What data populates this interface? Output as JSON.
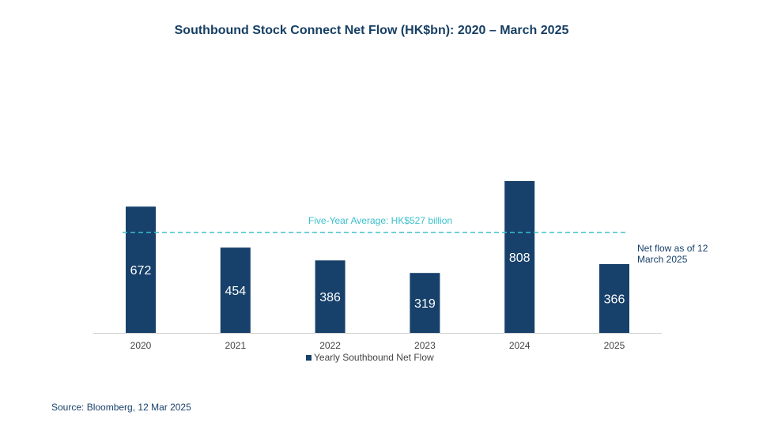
{
  "chart_data": {
    "type": "bar",
    "title": "Southbound Stock Connect Net Flow (HK$bn): 2020 – March 2025",
    "categories": [
      "2020",
      "2021",
      "2022",
      "2023",
      "2024",
      "2025"
    ],
    "series": [
      {
        "name": "Yearly Southbound Net Flow",
        "values": [
          672,
          454,
          386,
          319,
          808,
          366
        ],
        "color": "#17406a"
      }
    ],
    "data_labels": [
      "672",
      "454",
      "386",
      "319",
      "808",
      "366"
    ],
    "reference_line": {
      "value": 527,
      "label": "Five-Year Average: HK$527 billion",
      "color": "#3cc0cc",
      "style": "dashed"
    },
    "annotation": "Net flow as of 12 March 2025",
    "ylim": [
      0,
      808
    ],
    "xlabel": "",
    "ylabel": "",
    "grid": false,
    "legend_placement": "bottom"
  },
  "source": "Source: Bloomberg, 12 Mar 2025",
  "colors": {
    "bar": "#17406a",
    "title": "#173f63",
    "average_line": "#3cc0cc",
    "axis": "#d0d0d0"
  }
}
